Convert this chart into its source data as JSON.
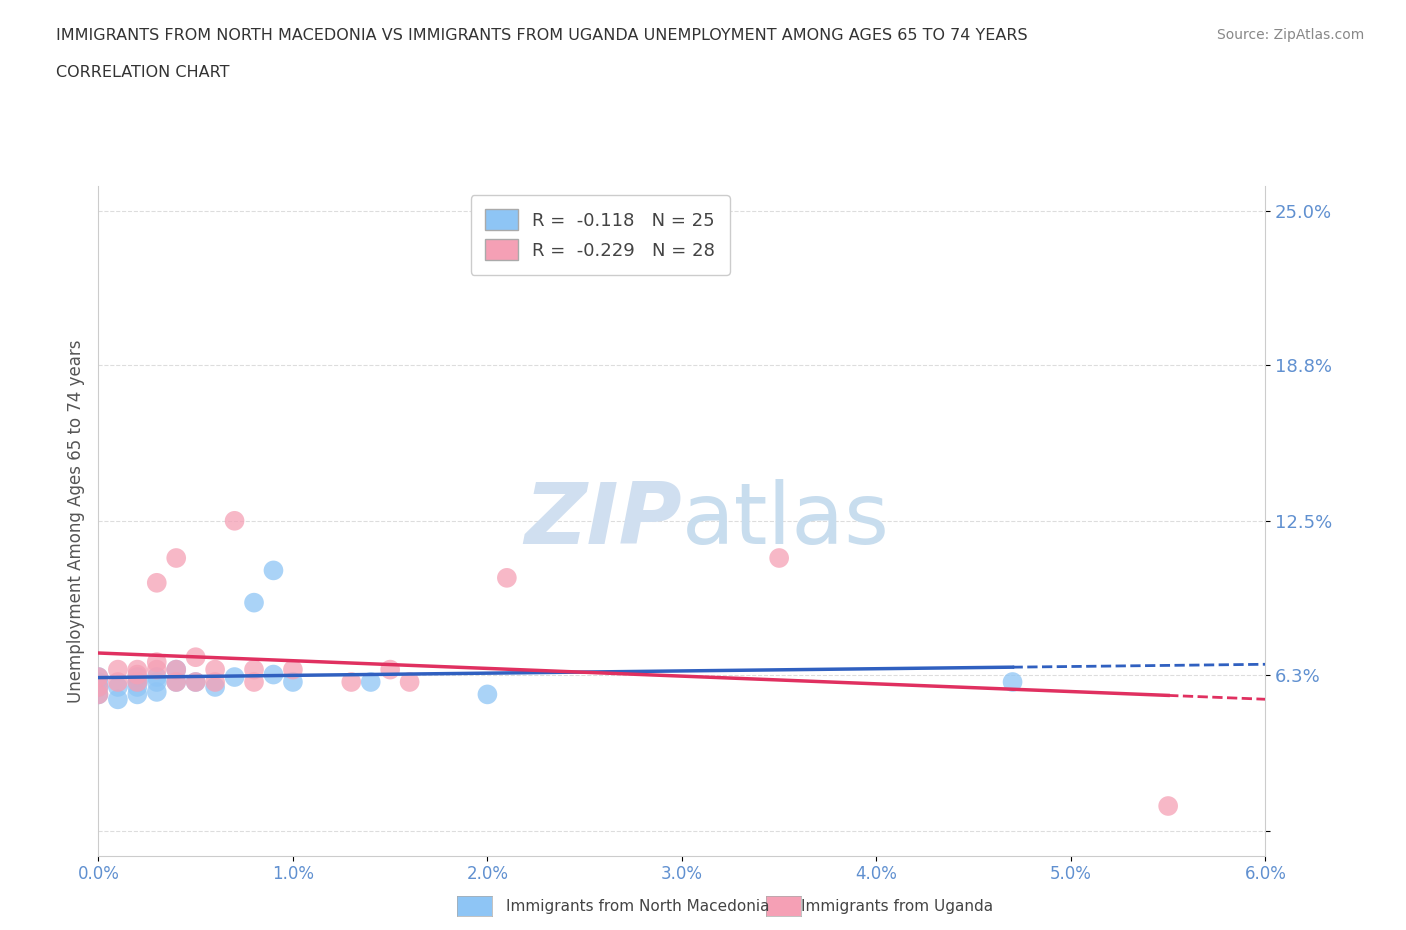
{
  "title_line1": "IMMIGRANTS FROM NORTH MACEDONIA VS IMMIGRANTS FROM UGANDA UNEMPLOYMENT AMONG AGES 65 TO 74 YEARS",
  "title_line2": "CORRELATION CHART",
  "source_text": "Source: ZipAtlas.com",
  "ylabel": "Unemployment Among Ages 65 to 74 years",
  "xlim": [
    0.0,
    0.06
  ],
  "ylim": [
    -0.01,
    0.26
  ],
  "ytick_vals": [
    0.0,
    0.063,
    0.125,
    0.188,
    0.25
  ],
  "ytick_labels": [
    "",
    "6.3%",
    "12.5%",
    "18.8%",
    "25.0%"
  ],
  "xtick_vals": [
    0.0,
    0.01,
    0.02,
    0.03,
    0.04,
    0.05,
    0.06
  ],
  "xtick_labels": [
    "0.0%",
    "1.0%",
    "2.0%",
    "3.0%",
    "4.0%",
    "5.0%",
    "6.0%"
  ],
  "legend_r1": "R =  -0.118   N = 25",
  "legend_r2": "R =  -0.229   N = 28",
  "color_macedonia": "#8EC5F5",
  "color_uganda": "#F5A0B5",
  "color_trendline_macedonia": "#3060C0",
  "color_trendline_uganda": "#E03060",
  "watermark_color": "#D0DFF0",
  "background_color": "#FFFFFF",
  "grid_color": "#DDDDDD",
  "tick_color": "#6090D0",
  "legend_label_mac": "Immigrants from North Macedonia",
  "legend_label_uga": "Immigrants from Uganda",
  "macedonia_x": [
    0.0,
    0.0,
    0.0,
    0.0,
    0.001,
    0.001,
    0.002,
    0.002,
    0.002,
    0.002,
    0.003,
    0.003,
    0.003,
    0.004,
    0.004,
    0.005,
    0.006,
    0.007,
    0.008,
    0.009,
    0.009,
    0.01,
    0.014,
    0.02,
    0.047
  ],
  "macedonia_y": [
    0.055,
    0.058,
    0.06,
    0.062,
    0.053,
    0.058,
    0.055,
    0.058,
    0.06,
    0.062,
    0.056,
    0.06,
    0.062,
    0.06,
    0.065,
    0.06,
    0.058,
    0.062,
    0.092,
    0.105,
    0.063,
    0.06,
    0.06,
    0.055,
    0.06
  ],
  "uganda_x": [
    0.0,
    0.0,
    0.0,
    0.001,
    0.001,
    0.002,
    0.002,
    0.002,
    0.003,
    0.003,
    0.003,
    0.004,
    0.004,
    0.004,
    0.005,
    0.005,
    0.006,
    0.006,
    0.007,
    0.008,
    0.008,
    0.01,
    0.013,
    0.015,
    0.016,
    0.021,
    0.035,
    0.055
  ],
  "uganda_y": [
    0.055,
    0.058,
    0.062,
    0.06,
    0.065,
    0.06,
    0.063,
    0.065,
    0.065,
    0.068,
    0.1,
    0.06,
    0.065,
    0.11,
    0.06,
    0.07,
    0.06,
    0.065,
    0.125,
    0.06,
    0.065,
    0.065,
    0.06,
    0.065,
    0.06,
    0.102,
    0.11,
    0.01
  ]
}
